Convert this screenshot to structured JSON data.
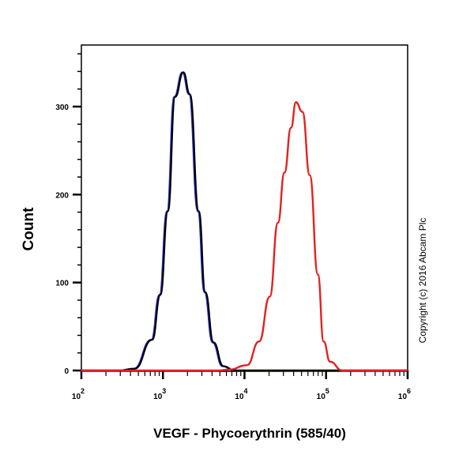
{
  "chart_data": {
    "type": "line",
    "title": "",
    "xlabel": "VEGF - Phycoerythrin (585/40)",
    "ylabel": "Count",
    "x_scale": "log",
    "xlim": [
      100,
      1000000
    ],
    "ylim": [
      0,
      370
    ],
    "x_ticks": [
      {
        "base": "10",
        "exp": "2"
      },
      {
        "base": "10",
        "exp": "3"
      },
      {
        "base": "10",
        "exp": "4"
      },
      {
        "base": "10",
        "exp": "5"
      },
      {
        "base": "10",
        "exp": "6"
      }
    ],
    "y_ticks": [
      "0",
      "100",
      "200",
      "300"
    ],
    "grid": false,
    "legend": "none",
    "series": [
      {
        "color": "#2b2bd6",
        "x": [
          290,
          450,
          740,
          930,
          1150,
          1410,
          1780,
          2140,
          2750,
          3310,
          4170,
          5500,
          7590
        ],
        "y": [
          0,
          2,
          35,
          86,
          181,
          311,
          339,
          314,
          181,
          89,
          32,
          5,
          0
        ]
      },
      {
        "color": "#000000",
        "x": [
          290,
          450,
          740,
          930,
          1150,
          1410,
          1780,
          2140,
          2750,
          3310,
          4170,
          5500,
          7590
        ],
        "y": [
          0,
          2,
          35,
          86,
          181,
          311,
          339,
          314,
          181,
          89,
          32,
          5,
          0
        ]
      },
      {
        "color": "#e52020",
        "x": [
          4790,
          6460,
          10700,
          15100,
          20400,
          25700,
          30900,
          37200,
          42700,
          51300,
          63100,
          79400,
          93300,
          112000,
          158000
        ],
        "y": [
          0,
          1,
          6,
          33,
          84,
          168,
          225,
          276,
          305,
          294,
          222,
          109,
          33,
          10,
          0
        ]
      }
    ]
  },
  "copyright": "Copyright (c) 2016 Abcam Plc"
}
